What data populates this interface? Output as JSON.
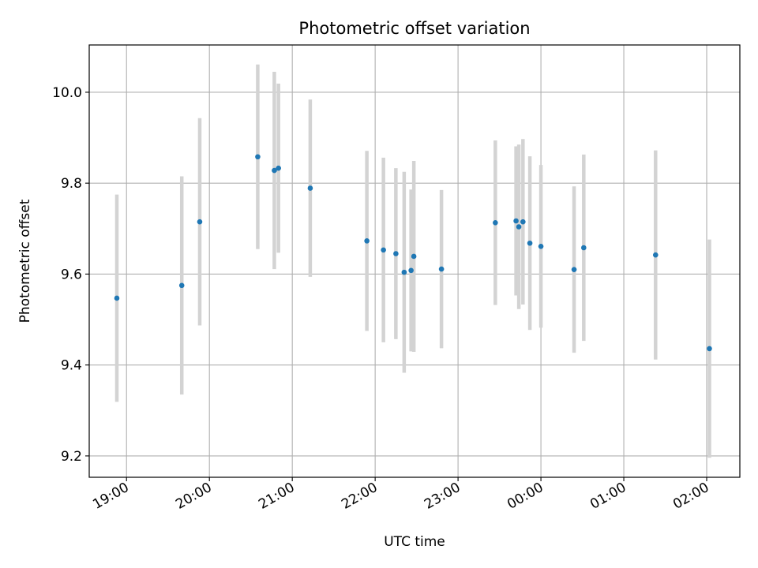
{
  "chart_data": {
    "type": "scatter",
    "title": "Photometric offset variation",
    "xlabel": "UTC time",
    "ylabel": "Photometric offset",
    "x_tick_labels": [
      "19:00",
      "20:00",
      "21:00",
      "22:00",
      "23:00",
      "00:00",
      "01:00",
      "02:00"
    ],
    "y_tick_labels": [
      "9.2",
      "9.4",
      "9.6",
      "9.8",
      "10.0"
    ],
    "y_ticks": [
      9.2,
      9.4,
      9.6,
      9.8,
      10.0
    ],
    "ylim": [
      9.153,
      10.104
    ],
    "xlim": [
      "18:33",
      "02:24"
    ],
    "grid": true,
    "point_color": "#1f77b4",
    "errorbar_color": "#d3d3d3",
    "series": [
      {
        "points": [
          {
            "x": "18:53",
            "y": 9.547,
            "err": 0.228
          },
          {
            "x": "19:40",
            "y": 9.575,
            "err": 0.24
          },
          {
            "x": "19:53",
            "y": 9.715,
            "err": 0.228
          },
          {
            "x": "20:35",
            "y": 9.858,
            "err": 0.203
          },
          {
            "x": "20:47",
            "y": 9.828,
            "err": 0.217
          },
          {
            "x": "20:50",
            "y": 9.833,
            "err": 0.186
          },
          {
            "x": "21:13",
            "y": 9.789,
            "err": 0.195
          },
          {
            "x": "21:54",
            "y": 9.673,
            "err": 0.198
          },
          {
            "x": "22:06",
            "y": 9.653,
            "err": 0.203
          },
          {
            "x": "22:15",
            "y": 9.645,
            "err": 0.188
          },
          {
            "x": "22:21",
            "y": 9.604,
            "err": 0.221
          },
          {
            "x": "22:26",
            "y": 9.608,
            "err": 0.178
          },
          {
            "x": "22:28",
            "y": 9.639,
            "err": 0.21
          },
          {
            "x": "22:48",
            "y": 9.611,
            "err": 0.174
          },
          {
            "x": "23:27",
            "y": 9.713,
            "err": 0.181
          },
          {
            "x": "23:42",
            "y": 9.717,
            "err": 0.164
          },
          {
            "x": "23:44",
            "y": 9.704,
            "err": 0.181
          },
          {
            "x": "23:47",
            "y": 9.715,
            "err": 0.182
          },
          {
            "x": "23:52",
            "y": 9.668,
            "err": 0.191
          },
          {
            "x": "00:00",
            "y": 9.661,
            "err": 0.179
          },
          {
            "x": "00:24",
            "y": 9.61,
            "err": 0.183
          },
          {
            "x": "00:31",
            "y": 9.658,
            "err": 0.205
          },
          {
            "x": "01:23",
            "y": 9.642,
            "err": 0.23
          },
          {
            "x": "02:02",
            "y": 9.436,
            "err": 0.24
          }
        ]
      }
    ]
  }
}
